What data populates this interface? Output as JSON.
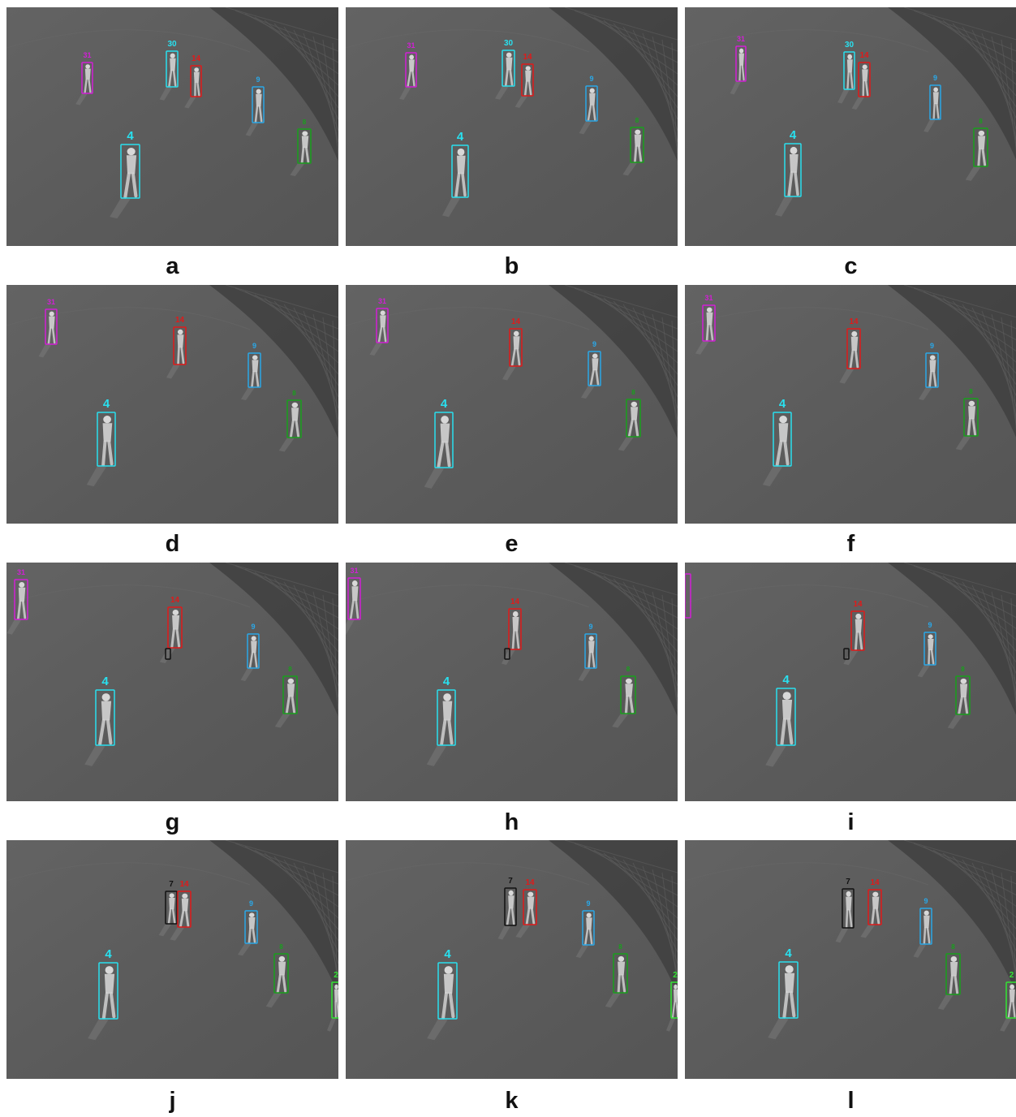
{
  "colors": {
    "track-4": "#29e0ef",
    "track-9": "#2aa8e8",
    "track-30": "#29e0ef",
    "track-14": "#e01a1a",
    "track-31": "#d21fd6",
    "track-8": "#18a01c",
    "track-2": "#33e633",
    "track-7": "#111111"
  },
  "panels": [
    {
      "caption": "a",
      "tracks": [
        {
          "id": "31",
          "color": "track-31"
        },
        {
          "id": "30",
          "color": "track-30"
        },
        {
          "id": "14",
          "color": "track-14"
        },
        {
          "id": "9",
          "color": "track-9"
        },
        {
          "id": "8",
          "color": "track-8"
        },
        {
          "id": "4",
          "color": "track-4"
        }
      ]
    },
    {
      "caption": "b",
      "tracks": [
        {
          "id": "31",
          "color": "track-31"
        },
        {
          "id": "30",
          "color": "track-30"
        },
        {
          "id": "14",
          "color": "track-14"
        },
        {
          "id": "9",
          "color": "track-9"
        },
        {
          "id": "8",
          "color": "track-8"
        },
        {
          "id": "4",
          "color": "track-4"
        }
      ]
    },
    {
      "caption": "c",
      "tracks": [
        {
          "id": "31",
          "color": "track-31"
        },
        {
          "id": "30",
          "color": "track-30"
        },
        {
          "id": "14",
          "color": "track-14"
        },
        {
          "id": "9",
          "color": "track-9"
        },
        {
          "id": "8",
          "color": "track-8"
        },
        {
          "id": "4",
          "color": "track-4"
        }
      ]
    },
    {
      "caption": "d",
      "tracks": [
        {
          "id": "31",
          "color": "track-31"
        },
        {
          "id": "14",
          "color": "track-14"
        },
        {
          "id": "9",
          "color": "track-9"
        },
        {
          "id": "8",
          "color": "track-8"
        },
        {
          "id": "4",
          "color": "track-4"
        }
      ]
    },
    {
      "caption": "e",
      "tracks": [
        {
          "id": "31",
          "color": "track-31"
        },
        {
          "id": "14",
          "color": "track-14"
        },
        {
          "id": "9",
          "color": "track-9"
        },
        {
          "id": "8",
          "color": "track-8"
        },
        {
          "id": "4",
          "color": "track-4"
        }
      ]
    },
    {
      "caption": "f",
      "tracks": [
        {
          "id": "31",
          "color": "track-31"
        },
        {
          "id": "14",
          "color": "track-14"
        },
        {
          "id": "9",
          "color": "track-9"
        },
        {
          "id": "8",
          "color": "track-8"
        },
        {
          "id": "4",
          "color": "track-4"
        }
      ]
    },
    {
      "caption": "g",
      "tracks": [
        {
          "id": "31",
          "color": "track-31"
        },
        {
          "id": "14",
          "color": "track-14"
        },
        {
          "id": "",
          "color": "track-7"
        },
        {
          "id": "9",
          "color": "track-9"
        },
        {
          "id": "8",
          "color": "track-8"
        },
        {
          "id": "4",
          "color": "track-4"
        },
        {
          "id": "",
          "color": "track-2"
        }
      ]
    },
    {
      "caption": "h",
      "tracks": [
        {
          "id": "31",
          "color": "track-31"
        },
        {
          "id": "14",
          "color": "track-14"
        },
        {
          "id": "",
          "color": "track-7"
        },
        {
          "id": "9",
          "color": "track-9"
        },
        {
          "id": "8",
          "color": "track-8"
        },
        {
          "id": "4",
          "color": "track-4"
        },
        {
          "id": "",
          "color": "track-2"
        }
      ]
    },
    {
      "caption": "i",
      "tracks": [
        {
          "id": "",
          "color": "track-31"
        },
        {
          "id": "14",
          "color": "track-14"
        },
        {
          "id": "",
          "color": "track-7"
        },
        {
          "id": "9",
          "color": "track-9"
        },
        {
          "id": "8",
          "color": "track-8"
        },
        {
          "id": "4",
          "color": "track-4"
        },
        {
          "id": "",
          "color": "track-2"
        }
      ]
    },
    {
      "caption": "j",
      "tracks": [
        {
          "id": "7",
          "color": "track-7"
        },
        {
          "id": "14",
          "color": "track-14"
        },
        {
          "id": "9",
          "color": "track-9"
        },
        {
          "id": "8",
          "color": "track-8"
        },
        {
          "id": "4",
          "color": "track-4"
        },
        {
          "id": "2",
          "color": "track-2"
        }
      ]
    },
    {
      "caption": "k",
      "tracks": [
        {
          "id": "7",
          "color": "track-7"
        },
        {
          "id": "14",
          "color": "track-14"
        },
        {
          "id": "9",
          "color": "track-9"
        },
        {
          "id": "8",
          "color": "track-8"
        },
        {
          "id": "4",
          "color": "track-4"
        },
        {
          "id": "2",
          "color": "track-2"
        }
      ]
    },
    {
      "caption": "l",
      "tracks": [
        {
          "id": "7",
          "color": "track-7"
        },
        {
          "id": "14",
          "color": "track-14"
        },
        {
          "id": "9",
          "color": "track-9"
        },
        {
          "id": "8",
          "color": "track-8"
        },
        {
          "id": "4",
          "color": "track-4"
        },
        {
          "id": "2",
          "color": "track-2"
        }
      ]
    }
  ]
}
